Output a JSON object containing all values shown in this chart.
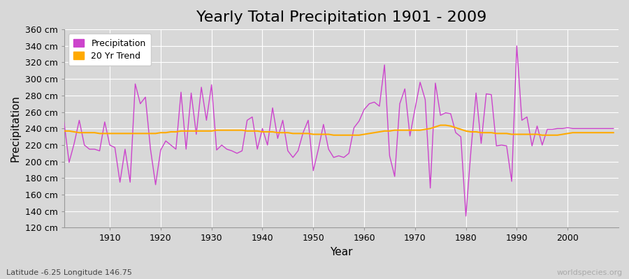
{
  "title": "Yearly Total Precipitation 1901 - 2009",
  "xlabel": "Year",
  "ylabel": "Precipitation",
  "subtitle": "Latitude -6.25 Longitude 146.75",
  "watermark": "worldspecies.org",
  "years": [
    1901,
    1902,
    1903,
    1904,
    1905,
    1906,
    1907,
    1908,
    1909,
    1910,
    1911,
    1912,
    1913,
    1914,
    1915,
    1916,
    1917,
    1918,
    1919,
    1920,
    1921,
    1922,
    1923,
    1924,
    1925,
    1926,
    1927,
    1928,
    1929,
    1930,
    1931,
    1932,
    1933,
    1934,
    1935,
    1936,
    1937,
    1938,
    1939,
    1940,
    1941,
    1942,
    1943,
    1944,
    1945,
    1946,
    1947,
    1948,
    1949,
    1950,
    1951,
    1952,
    1953,
    1954,
    1955,
    1956,
    1957,
    1958,
    1959,
    1960,
    1961,
    1962,
    1963,
    1964,
    1965,
    1966,
    1967,
    1968,
    1969,
    1970,
    1971,
    1972,
    1973,
    1974,
    1975,
    1976,
    1977,
    1978,
    1979,
    1980,
    1981,
    1982,
    1983,
    1984,
    1985,
    1986,
    1987,
    1988,
    1989,
    1990,
    1991,
    1992,
    1993,
    1994,
    1995,
    1996,
    1997,
    1998,
    1999,
    2000,
    2001,
    2002,
    2003,
    2004,
    2005,
    2006,
    2007,
    2008,
    2009
  ],
  "precipitation": [
    248,
    199,
    222,
    250,
    220,
    215,
    215,
    213,
    248,
    220,
    217,
    175,
    215,
    175,
    294,
    270,
    278,
    215,
    172,
    214,
    225,
    220,
    215,
    284,
    215,
    283,
    233,
    290,
    250,
    293,
    214,
    220,
    215,
    213,
    210,
    213,
    250,
    254,
    215,
    240,
    220,
    265,
    228,
    250,
    213,
    205,
    213,
    235,
    250,
    189,
    215,
    245,
    215,
    205,
    207,
    205,
    210,
    241,
    249,
    263,
    270,
    272,
    267,
    317,
    207,
    182,
    270,
    288,
    231,
    264,
    296,
    275,
    168,
    295,
    256,
    259,
    258,
    235,
    230,
    134,
    214,
    283,
    222,
    282,
    281,
    219,
    220,
    219,
    176,
    340,
    250,
    254,
    219,
    243,
    220,
    239,
    239,
    240,
    240,
    241,
    240,
    240,
    240,
    240,
    240,
    240,
    240,
    240,
    240
  ],
  "trend": [
    237,
    237,
    236,
    235,
    235,
    235,
    235,
    234,
    234,
    234,
    234,
    234,
    234,
    234,
    234,
    234,
    234,
    234,
    234,
    235,
    235,
    236,
    236,
    237,
    237,
    237,
    237,
    237,
    237,
    237,
    238,
    238,
    238,
    238,
    238,
    238,
    237,
    237,
    237,
    236,
    236,
    236,
    235,
    235,
    235,
    234,
    234,
    234,
    234,
    233,
    233,
    233,
    233,
    232,
    232,
    232,
    232,
    232,
    232,
    233,
    234,
    235,
    236,
    237,
    237,
    238,
    238,
    238,
    238,
    238,
    238,
    239,
    240,
    242,
    244,
    244,
    243,
    241,
    239,
    237,
    236,
    236,
    235,
    235,
    235,
    234,
    234,
    234,
    233,
    233,
    233,
    233,
    233,
    233,
    232,
    232,
    232,
    232,
    233,
    234,
    235,
    235,
    235,
    235,
    235,
    235,
    235,
    235,
    235
  ],
  "precip_color": "#cc44cc",
  "trend_color": "#ffaa00",
  "fig_bg_color": "#d8d8d8",
  "plot_bg_color": "#d8d8d8",
  "grid_color": "#ffffff",
  "ylim": [
    120,
    360
  ],
  "yticks": [
    120,
    140,
    160,
    180,
    200,
    220,
    240,
    260,
    280,
    300,
    320,
    340,
    360
  ],
  "xticks": [
    1910,
    1920,
    1930,
    1940,
    1950,
    1960,
    1970,
    1980,
    1990,
    2000
  ],
  "title_fontsize": 16,
  "axis_label_fontsize": 11,
  "tick_fontsize": 9,
  "legend_fontsize": 9,
  "subtitle_fontsize": 8,
  "watermark_fontsize": 8
}
